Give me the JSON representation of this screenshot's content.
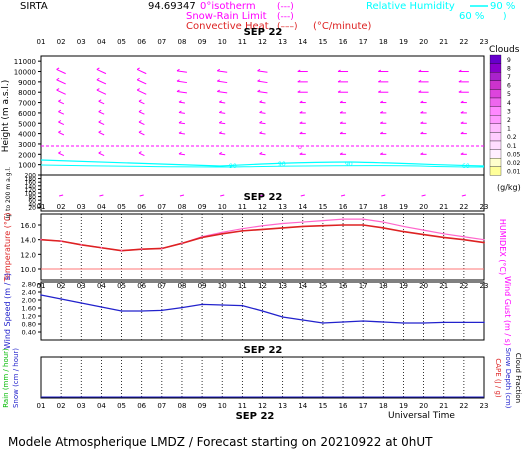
{
  "header": {
    "station": "SIRTA",
    "coords": "94.69347",
    "legend": {
      "isotherm": "0°isotherm",
      "snow_rain": "Snow-Rain Limit",
      "convective": "Convective Heat.",
      "convective_unit": "(°C/minute)",
      "rh_title": "Relative Humidity",
      "rh_90": "90 %",
      "rh_60": "60 %"
    }
  },
  "colors": {
    "magenta": "#ff00ff",
    "cyan": "#00ffff",
    "red": "#dd2222",
    "humidex": "#ff66cc",
    "blue": "#2222cc",
    "green": "#00bb00",
    "grid": "#000000"
  },
  "time_axis": {
    "hours": [
      "01",
      "02",
      "03",
      "04",
      "05",
      "06",
      "07",
      "08",
      "09",
      "10",
      "11",
      "12",
      "13",
      "14",
      "15",
      "16",
      "17",
      "18",
      "19",
      "20",
      "21",
      "22",
      "23"
    ],
    "date_label": "SEP 22",
    "universal_time": "Universal Time"
  },
  "footer": {
    "text": "Modele Atmospherique LMDZ / Forecast starting on 20210922 at 0hUT"
  },
  "chart_data": [
    {
      "type": "scatter",
      "name": "clouds-wind-height",
      "ylabel": "Height (m a.s.l.)",
      "y_ticks": [
        1000,
        2000,
        3000,
        4000,
        5000,
        6000,
        7000,
        8000,
        9000,
        10000,
        11000
      ],
      "ylim": [
        0,
        11500
      ],
      "isotherm_0c_m": 3100,
      "cloud_scale": {
        "title": "Clouds",
        "unit": "(g/kg)",
        "levels": [
          "9",
          "8",
          "7",
          "6",
          "5",
          "4",
          "3",
          "2",
          "1",
          "0.2",
          "0.1",
          "0.05",
          "0.02",
          "0.01"
        ]
      },
      "wind_levels_m": [
        10000,
        9000,
        8000,
        7000,
        6000,
        5000,
        4000,
        2000
      ],
      "wind_hours": [
        "02",
        "04",
        "06",
        "08",
        "10",
        "12",
        "14",
        "16",
        "18",
        "20",
        "22"
      ]
    },
    {
      "type": "scatter",
      "name": "low-level",
      "ylabel": "Up to 200 m a.g.l.",
      "y_ticks": [
        20,
        40,
        60,
        80,
        100,
        120,
        140,
        160,
        180,
        200
      ],
      "ylim": [
        0,
        200
      ]
    },
    {
      "type": "line",
      "name": "temperature",
      "ylabel": "Temperature (°C)",
      "y2label": "HUMIDEX (°C)",
      "y_ticks": [
        10.0,
        12.0,
        14.0,
        16.0
      ],
      "ylim": [
        8.5,
        17.5
      ],
      "reference_line": 10.0,
      "x": [
        1,
        2,
        3,
        4,
        5,
        6,
        7,
        8,
        9,
        10,
        11,
        12,
        13,
        14,
        15,
        16,
        17,
        18,
        19,
        20,
        21,
        22,
        23
      ],
      "series": [
        {
          "values": [
            14.0,
            13.8,
            13.3,
            12.9,
            12.5,
            12.7,
            12.8,
            13.5,
            14.3,
            14.8,
            15.2,
            15.4,
            15.6,
            15.8,
            15.9,
            16.0,
            16.0,
            15.6,
            15.1,
            14.7,
            14.3,
            14.0,
            13.6
          ]
        },
        {
          "values": [
            14.0,
            13.8,
            13.3,
            12.9,
            12.5,
            12.7,
            12.8,
            13.5,
            14.4,
            15.0,
            15.5,
            15.9,
            16.2,
            16.4,
            16.6,
            16.8,
            16.8,
            16.4,
            15.8,
            15.3,
            14.8,
            14.4,
            14.0
          ]
        }
      ]
    },
    {
      "type": "line",
      "name": "wind-speed",
      "ylabel": "Wind Speed (m / s)",
      "y2label": "Wind Gust (m / s)",
      "y_ticks": [
        0.4,
        0.8,
        1.2,
        1.6,
        2.0,
        2.4,
        2.8
      ],
      "ylim": [
        0.0,
        2.9
      ],
      "x": [
        1,
        2,
        3,
        4,
        5,
        6,
        7,
        8,
        9,
        10,
        11,
        12,
        13,
        14,
        15,
        16,
        17,
        18,
        19,
        20,
        21,
        22,
        23
      ],
      "series": [
        {
          "values": [
            2.25,
            2.05,
            1.85,
            1.65,
            1.45,
            1.45,
            1.48,
            1.62,
            1.78,
            1.75,
            1.72,
            1.45,
            1.15,
            1.0,
            0.85,
            0.9,
            0.95,
            0.9,
            0.85,
            0.85,
            0.88,
            0.88,
            0.88
          ]
        }
      ]
    },
    {
      "type": "bar",
      "name": "precipitation",
      "ylabel": "Rain (mm / hour)",
      "ylabel_2": "Snow (cm / hour)",
      "y2label": "CAPE (J / g)",
      "y2label_2": "Snow Depth (cm)",
      "y2label_3": "Cloud Fraction",
      "x": [
        1,
        2,
        3,
        4,
        5,
        6,
        7,
        8,
        9,
        10,
        11,
        12,
        13,
        14,
        15,
        16,
        17,
        18,
        19,
        20,
        21,
        22,
        23
      ],
      "values": [
        0,
        0,
        0,
        0,
        0,
        0,
        0,
        0,
        0,
        0,
        0,
        0,
        0,
        0,
        0,
        0,
        0,
        0,
        0,
        0,
        0,
        0,
        0
      ]
    }
  ]
}
